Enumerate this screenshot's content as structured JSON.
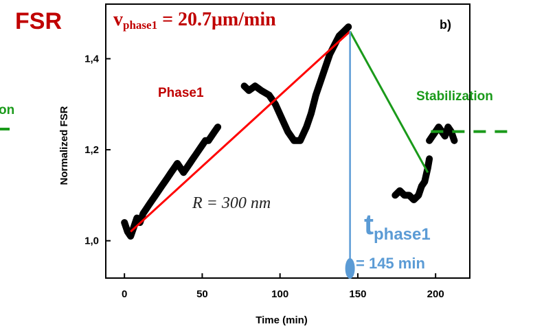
{
  "chart_data": {
    "type": "scatter",
    "panel_label": "b)",
    "header_label": "FSR",
    "xlabel": "Time (min)",
    "ylabel": "Normalized FSR",
    "xlim": [
      -12,
      222
    ],
    "ylim": [
      0.918,
      1.52
    ],
    "x_ticks": [
      0,
      50,
      100,
      150,
      200
    ],
    "x_tick_labels": [
      "0",
      "50",
      "100",
      "150",
      "200"
    ],
    "y_ticks": [
      1.0,
      1.2,
      1.4
    ],
    "y_tick_labels": [
      "1,0",
      "1,2",
      "1,4"
    ],
    "grid": false,
    "series": [
      {
        "segment": 1,
        "points": [
          [
            0,
            1.04
          ],
          [
            2,
            1.02
          ],
          [
            4,
            1.01
          ],
          [
            6,
            1.03
          ],
          [
            8,
            1.05
          ],
          [
            10,
            1.04
          ],
          [
            12,
            1.06
          ],
          [
            14,
            1.07
          ],
          [
            16,
            1.08
          ],
          [
            18,
            1.09
          ],
          [
            20,
            1.1
          ],
          [
            22,
            1.11
          ],
          [
            24,
            1.12
          ],
          [
            26,
            1.13
          ],
          [
            28,
            1.14
          ],
          [
            30,
            1.15
          ],
          [
            32,
            1.16
          ],
          [
            34,
            1.17
          ],
          [
            36,
            1.16
          ],
          [
            38,
            1.15
          ],
          [
            40,
            1.16
          ],
          [
            42,
            1.17
          ],
          [
            44,
            1.18
          ],
          [
            46,
            1.19
          ],
          [
            48,
            1.2
          ],
          [
            50,
            1.21
          ],
          [
            52,
            1.22
          ],
          [
            54,
            1.22
          ],
          [
            56,
            1.23
          ],
          [
            58,
            1.24
          ],
          [
            60,
            1.25
          ]
        ]
      },
      {
        "segment": 2,
        "points": [
          [
            77,
            1.34
          ],
          [
            80,
            1.33
          ],
          [
            84,
            1.34
          ],
          [
            88,
            1.33
          ],
          [
            93,
            1.32
          ],
          [
            97,
            1.3
          ],
          [
            101,
            1.27
          ],
          [
            105,
            1.24
          ],
          [
            109,
            1.22
          ],
          [
            113,
            1.22
          ],
          [
            117,
            1.25
          ],
          [
            120,
            1.28
          ],
          [
            123,
            1.32
          ],
          [
            126,
            1.35
          ],
          [
            129,
            1.38
          ],
          [
            132,
            1.41
          ],
          [
            135,
            1.43
          ],
          [
            138,
            1.45
          ],
          [
            141,
            1.46
          ],
          [
            144,
            1.47
          ]
        ]
      },
      {
        "segment": 3,
        "points": [
          [
            174,
            1.1
          ],
          [
            177,
            1.11
          ],
          [
            180,
            1.1
          ],
          [
            183,
            1.1
          ],
          [
            186,
            1.09
          ],
          [
            189,
            1.1
          ],
          [
            191,
            1.12
          ],
          [
            193,
            1.13
          ],
          [
            195,
            1.16
          ],
          [
            196,
            1.18
          ]
        ]
      },
      {
        "segment": 4,
        "points": [
          [
            196,
            1.22
          ],
          [
            198,
            1.23
          ],
          [
            200,
            1.24
          ],
          [
            202,
            1.25
          ],
          [
            204,
            1.24
          ],
          [
            206,
            1.23
          ],
          [
            208,
            1.25
          ],
          [
            210,
            1.24
          ],
          [
            212,
            1.22
          ]
        ]
      }
    ],
    "fit_lines": [
      {
        "label": "Phase1",
        "color": "#ff0000",
        "points": [
          [
            4,
            1.02
          ],
          [
            145,
            1.46
          ]
        ]
      },
      {
        "label": "",
        "color": "#1a9a1a",
        "points": [
          [
            145,
            1.46
          ],
          [
            195,
            1.15
          ]
        ]
      }
    ],
    "phase_marker": {
      "x": 145,
      "color": "#5b9bd5"
    },
    "stabilization_level": {
      "y": 1.24,
      "x_range": [
        197,
        250
      ],
      "color": "#1a9a1a"
    },
    "annotations": {
      "velocity_v": "v",
      "velocity_sub": "phase1",
      "velocity_value": " = 20.7μm/min",
      "radius": "R = 300 nm",
      "phase_label": "Phase1",
      "stabilization_label": "Stabilization",
      "left_cut_label": "on",
      "t_main": "t",
      "t_sub": "phase1",
      "t_value": "= 145 min"
    }
  },
  "colors": {
    "red": "#ff0000",
    "dark_red": "#c00000",
    "green": "#1a9a1a",
    "blue": "#5b9bd5",
    "black": "#000000"
  }
}
